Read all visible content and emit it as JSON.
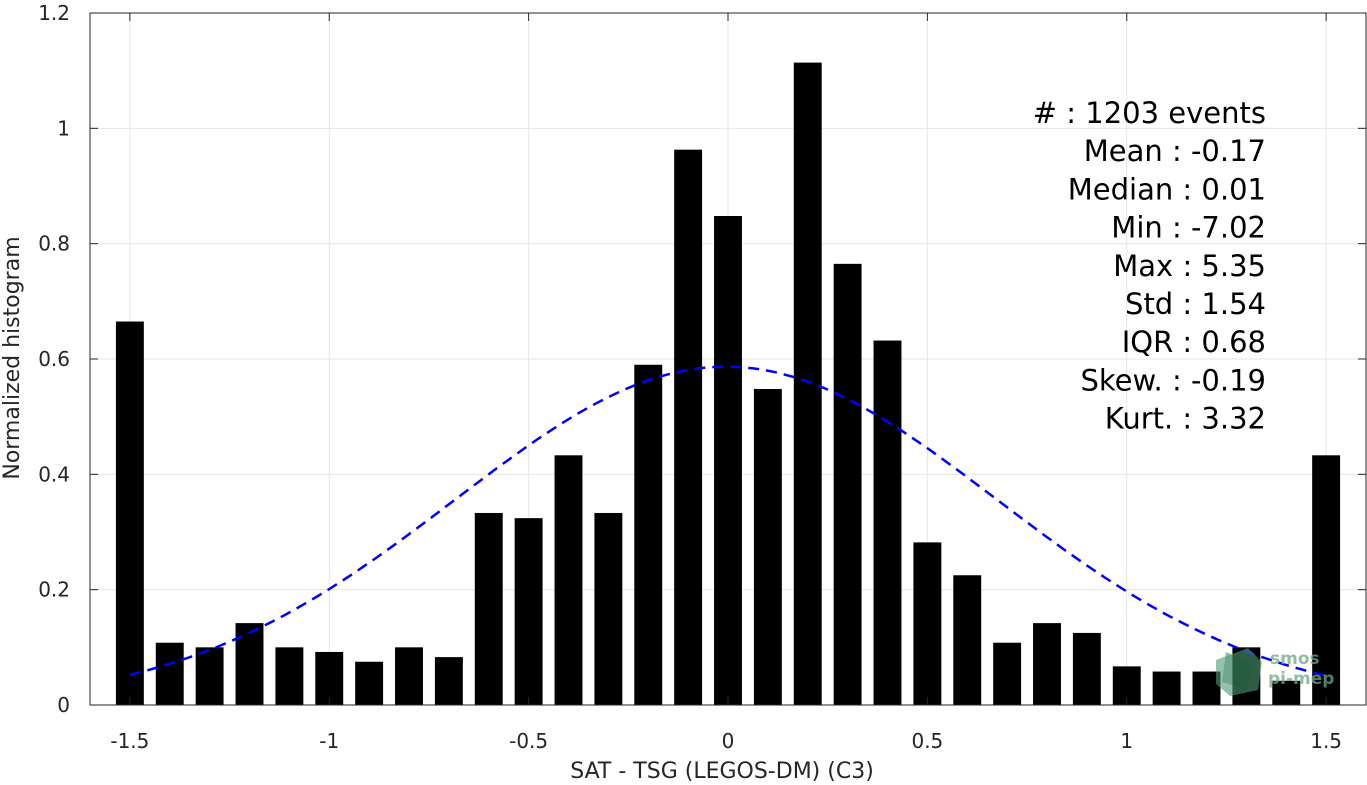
{
  "chart_data": {
    "type": "bar",
    "xlabel": "SAT - TSG (LEGOS-DM) (C3)",
    "ylabel": "Normalized histogram",
    "xlim": [
      -1.6,
      1.6
    ],
    "ylim": [
      0,
      1.2
    ],
    "x_ticks": [
      -1.5,
      -1,
      -0.5,
      0,
      0.5,
      1,
      1.5
    ],
    "x_tick_labels": [
      "-1.5",
      "-1",
      "-0.5",
      "0",
      "0.5",
      "1",
      "1.5"
    ],
    "y_ticks": [
      0,
      0.2,
      0.4,
      0.6,
      0.8,
      1,
      1.2
    ],
    "y_tick_labels": [
      "0",
      "0.2",
      "0.4",
      "0.6",
      "0.8",
      "1",
      "1.2"
    ],
    "grid": true,
    "bar_width": 0.07,
    "bins": [
      -1.5,
      -1.4,
      -1.3,
      -1.2,
      -1.1,
      -1.0,
      -0.9,
      -0.8,
      -0.7,
      -0.6,
      -0.5,
      -0.4,
      -0.3,
      -0.2,
      -0.1,
      0.0,
      0.1,
      0.2,
      0.3,
      0.4,
      0.5,
      0.6,
      0.7,
      0.8,
      0.9,
      1.0,
      1.1,
      1.2,
      1.3,
      1.4,
      1.5
    ],
    "values": [
      0.665,
      0.108,
      0.1,
      0.142,
      0.1,
      0.092,
      0.075,
      0.1,
      0.083,
      0.333,
      0.324,
      0.433,
      0.333,
      0.59,
      0.963,
      0.848,
      0.548,
      1.114,
      0.765,
      0.632,
      0.282,
      0.225,
      0.108,
      0.142,
      0.125,
      0.067,
      0.058,
      0.058,
      0.1,
      0.042,
      0.433
    ],
    "fit_curve": {
      "type": "normal",
      "mean": -0.005,
      "std": 0.68,
      "color": "#0000ff",
      "style": "dashed",
      "x_range": [
        -1.5,
        1.5
      ]
    },
    "bar_color": "#000000",
    "stats": [
      "#  : 1203 events",
      "Mean : -0.17",
      "Median : 0.01",
      "Min : -7.02",
      "Max : 5.35",
      "Std : 1.54",
      "IQR : 0.68",
      "Skew. : -0.19",
      "Kurt. : 3.32"
    ],
    "stats_placement": "top-right"
  },
  "logo": {
    "text_line1": "smos",
    "text_line2": "pi-mep",
    "color": "#6fa88a"
  }
}
